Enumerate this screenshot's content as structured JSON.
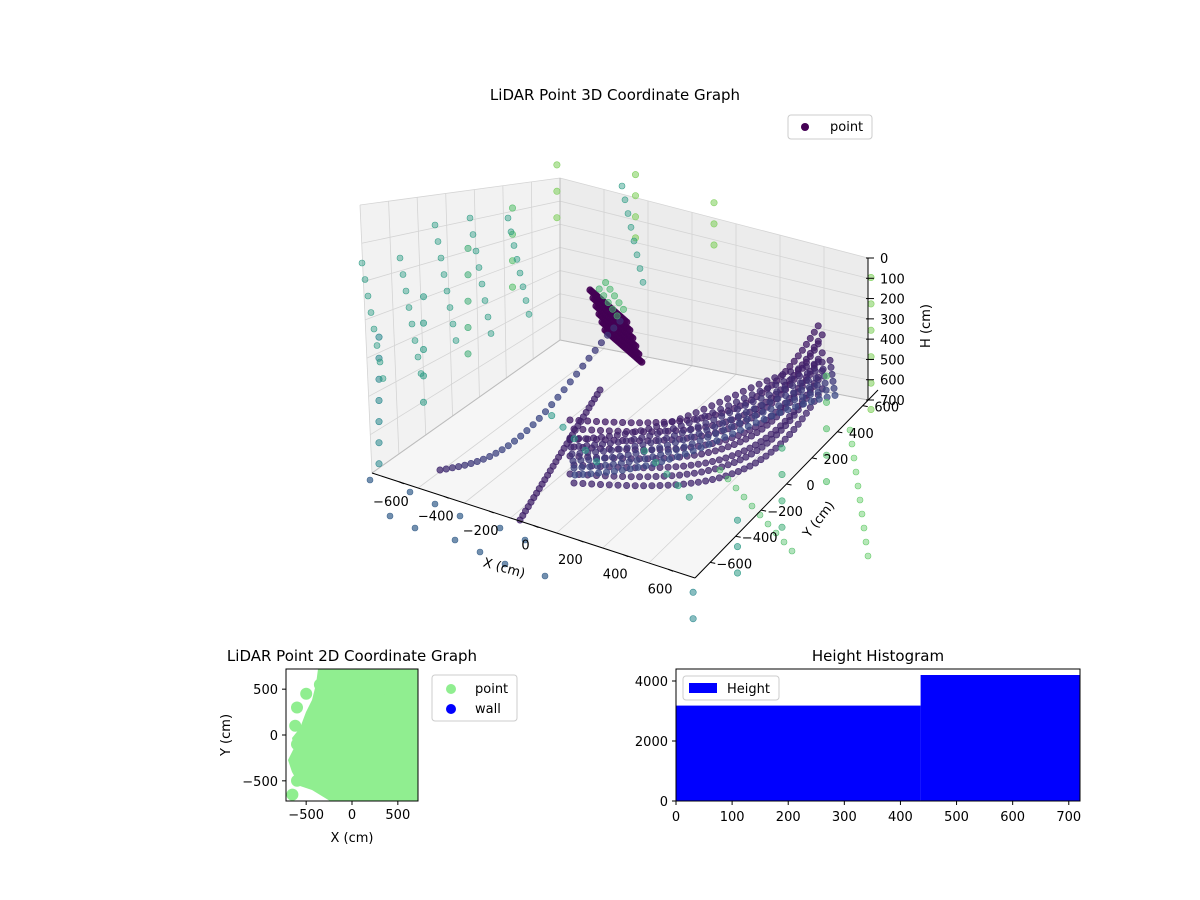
{
  "chart_data": [
    {
      "type": "scatter",
      "kind": "3d-scatter",
      "title": "LiDAR Point 3D Coordinate Graph",
      "xlabel": "X (cm)",
      "ylabel": "Y (cm)",
      "zlabel": "H (cm)",
      "xlim": [
        -720,
        720
      ],
      "ylim": [
        -720,
        720
      ],
      "zlim": [
        720,
        0
      ],
      "z_inverted": true,
      "xticks": [
        "−600",
        "−400",
        "−200",
        "0",
        "200",
        "400",
        "600"
      ],
      "yticks": [
        "−600",
        "−400",
        "−200",
        "0",
        "200",
        "400",
        "600"
      ],
      "zticks": [
        "0",
        "100",
        "200",
        "300",
        "400",
        "500",
        "600",
        "700"
      ],
      "colormap": "viridis",
      "legend": {
        "entries": [
          "point"
        ],
        "placement": "top-right"
      },
      "legend_marker_color": "#440154",
      "grid": true,
      "series": [
        {
          "name": "point",
          "description": "LiDAR point cloud; color encodes depth (viridis)",
          "points": [
            [
              -700,
              -700,
              20
            ],
            [
              -700,
              -700,
              100
            ],
            [
              -700,
              -700,
              180
            ],
            [
              -700,
              -700,
              260
            ],
            [
              -700,
              -700,
              340
            ],
            [
              -700,
              -700,
              420
            ],
            [
              -700,
              -700,
              500
            ],
            [
              -700,
              -350,
              40
            ],
            [
              -700,
              -350,
              140
            ],
            [
              -700,
              -350,
              240
            ],
            [
              -700,
              -350,
              340
            ],
            [
              -700,
              -350,
              440
            ],
            [
              -700,
              0,
              30
            ],
            [
              -700,
              0,
              130
            ],
            [
              -700,
              0,
              230
            ],
            [
              -700,
              0,
              330
            ],
            [
              -700,
              0,
              430
            ],
            [
              -700,
              350,
              50
            ],
            [
              -700,
              350,
              150
            ],
            [
              -700,
              350,
              250
            ],
            [
              -700,
              350,
              350
            ],
            [
              -700,
              700,
              60
            ],
            [
              -700,
              700,
              160
            ],
            [
              -700,
              700,
              260
            ],
            [
              -350,
              700,
              0
            ],
            [
              -350,
              700,
              80
            ],
            [
              -350,
              700,
              160
            ],
            [
              -350,
              700,
              240
            ],
            [
              0,
              700,
              10
            ],
            [
              0,
              700,
              90
            ],
            [
              0,
              700,
              170
            ],
            [
              700,
              700,
              100
            ],
            [
              700,
              700,
              200
            ],
            [
              700,
              700,
              300
            ],
            [
              700,
              700,
              400
            ],
            [
              700,
              700,
              500
            ],
            [
              700,
              700,
              600
            ],
            [
              700,
              350,
              300
            ],
            [
              700,
              350,
              400
            ],
            [
              700,
              350,
              500
            ],
            [
              700,
              350,
              600
            ],
            [
              700,
              350,
              700
            ],
            [
              700,
              0,
              400
            ],
            [
              700,
              0,
              500
            ],
            [
              700,
              0,
              600
            ],
            [
              700,
              0,
              700
            ],
            [
              700,
              -350,
              500
            ],
            [
              700,
              -350,
              600
            ],
            [
              700,
              -350,
              700
            ],
            [
              700,
              -700,
              600
            ],
            [
              700,
              -700,
              700
            ],
            [
              -200,
              150,
              120
            ],
            [
              -180,
              150,
              140
            ],
            [
              -160,
              150,
              160
            ],
            [
              -140,
              150,
              180
            ],
            [
              -120,
              150,
              200
            ],
            [
              -200,
              200,
              120
            ],
            [
              -180,
              200,
              140
            ],
            [
              -160,
              200,
              160
            ],
            [
              -140,
              200,
              180
            ],
            [
              -120,
              200,
              200
            ],
            [
              -100,
              -400,
              300
            ],
            [
              -50,
              -400,
              330
            ],
            [
              0,
              -400,
              360
            ],
            [
              50,
              -400,
              390
            ],
            [
              100,
              -400,
              420
            ],
            [
              200,
              -200,
              450
            ],
            [
              250,
              -200,
              480
            ],
            [
              300,
              -200,
              510
            ],
            [
              350,
              -200,
              540
            ],
            [
              400,
              -200,
              570
            ]
          ]
        }
      ]
    },
    {
      "type": "scatter",
      "title": "LiDAR Point 2D Coordinate Graph",
      "xlabel": "X (cm)",
      "ylabel": "Y (cm)",
      "xlim": [
        -720,
        720
      ],
      "ylim": [
        -720,
        720
      ],
      "xticks": [
        "−500",
        "0",
        "500"
      ],
      "yticks": [
        "−500",
        "0",
        "500"
      ],
      "legend": {
        "entries": [
          "point",
          "wall"
        ],
        "placement": "outside-right"
      },
      "series": [
        {
          "name": "point",
          "color": "#90ee90",
          "coverage": "dense fill of most of the plot area",
          "points": [
            [
              -650,
              -650
            ],
            [
              -600,
              -500
            ],
            [
              -550,
              -300
            ],
            [
              -600,
              -100
            ],
            [
              -620,
              100
            ],
            [
              -600,
              300
            ],
            [
              -500,
              450
            ],
            [
              -350,
              550
            ],
            [
              -250,
              650
            ],
            [
              -100,
              0
            ],
            [
              0,
              200
            ],
            [
              200,
              -200
            ],
            [
              300,
              400
            ],
            [
              500,
              -500
            ],
            [
              600,
              0
            ],
            [
              650,
              650
            ],
            [
              400,
              650
            ],
            [
              -300,
              -600
            ],
            [
              0,
              -650
            ]
          ]
        },
        {
          "name": "wall",
          "color": "#0000ff",
          "points": []
        }
      ]
    },
    {
      "type": "bar",
      "kind": "histogram",
      "title": "Height Histogram",
      "xlim": [
        0,
        720
      ],
      "ylim": [
        0,
        4400
      ],
      "xticks": [
        "0",
        "100",
        "200",
        "300",
        "400",
        "500",
        "600",
        "700"
      ],
      "yticks": [
        "0",
        "2000",
        "4000"
      ],
      "legend": {
        "entries": [
          "Height"
        ],
        "placement": "top-left"
      },
      "series": [
        {
          "name": "Height",
          "color": "#0000ff",
          "bins": [
            {
              "x0": 0,
              "x1": 436,
              "count": 3180
            },
            {
              "x0": 436,
              "x1": 720,
              "count": 4200
            }
          ]
        }
      ]
    }
  ]
}
